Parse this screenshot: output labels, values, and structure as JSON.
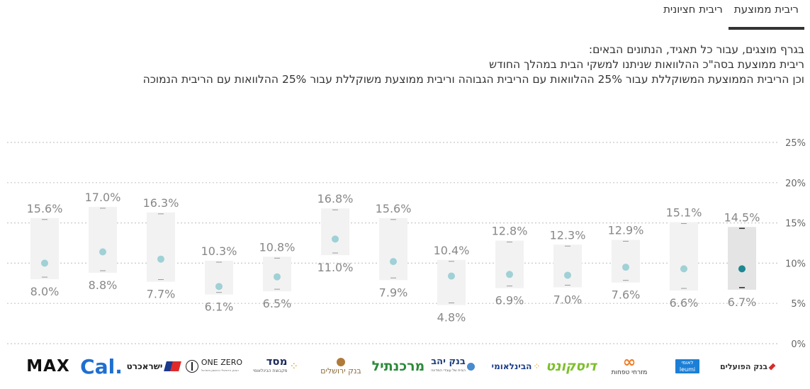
{
  "tabs": [
    {
      "label": "ריבית ממוצעת",
      "active": true
    },
    {
      "label": "ריבית חציונית",
      "active": false
    }
  ],
  "description": [
    "בגרף מוצגים, עבור כל תאגיד, הנתונים הבאים:",
    "ריבית ממוצעת בסה\"כ ההלוואות שניתנו למשקי הבית במהלך החודש",
    "וכן הריבית הממוצעת המשוקללת עבור 25% ההלוואות עם הריבית הגבוהה וריבית ממוצעת משוקללת עבור 25% ההלוואות עם הריבית הנמוכה"
  ],
  "chart_data": {
    "type": "range-dot",
    "y_ticks": [
      "25%",
      "20%",
      "15%",
      "10%",
      "5%",
      "0%"
    ],
    "ylim": [
      0,
      25
    ],
    "grid": true,
    "colors": {
      "box": "#f2f2f2",
      "box_selected": "#e4e4e4",
      "dot": "#9fd1d6",
      "dot_selected": "#1d8891",
      "label": "#888888"
    },
    "banks": [
      {
        "name": "MAX",
        "high": 15.6,
        "low": 8.0,
        "avg": 10.0,
        "high_label": "15.6%",
        "low_label": "8.0%"
      },
      {
        "name": "Cal.",
        "high": 17.0,
        "low": 8.8,
        "avg": 11.4,
        "high_label": "17.0%",
        "low_label": "8.8%"
      },
      {
        "name": "ישראכרט",
        "high": 16.3,
        "low": 7.7,
        "avg": 10.5,
        "high_label": "16.3%",
        "low_label": "7.7%"
      },
      {
        "name": "ONE ZERO",
        "high": 10.3,
        "low": 6.1,
        "avg": 7.1,
        "high_label": "10.3%",
        "low_label": "6.1%"
      },
      {
        "name": "מסד",
        "high": 10.8,
        "low": 6.5,
        "avg": 8.3,
        "high_label": "10.8%",
        "low_label": "6.5%"
      },
      {
        "name": "בנק ירושלים",
        "high": 16.8,
        "low": 11.0,
        "avg": 13.0,
        "high_label": "16.8%",
        "low_label": "11.0%"
      },
      {
        "name": "מרכנתיל",
        "high": 15.6,
        "low": 7.9,
        "avg": 10.2,
        "high_label": "15.6%",
        "low_label": "7.9%"
      },
      {
        "name": "בנק יהב",
        "high": 10.4,
        "low": 4.8,
        "avg": 8.4,
        "high_label": "10.4%",
        "low_label": "4.8%"
      },
      {
        "name": "הבינלאומי",
        "high": 12.8,
        "low": 6.9,
        "avg": 8.6,
        "high_label": "12.8%",
        "low_label": "6.9%"
      },
      {
        "name": "דיסקונט",
        "high": 12.3,
        "low": 7.0,
        "avg": 8.5,
        "high_label": "12.3%",
        "low_label": "7.0%"
      },
      {
        "name": "מזרחי טפחות",
        "high": 12.9,
        "low": 7.6,
        "avg": 9.5,
        "high_label": "12.9%",
        "low_label": "7.6%"
      },
      {
        "name": "לאומי",
        "high": 15.1,
        "low": 6.6,
        "avg": 9.3,
        "high_label": "15.1%",
        "low_label": "6.6%"
      },
      {
        "name": "בנק הפועלים",
        "high": 14.5,
        "low": 6.7,
        "avg": 9.3,
        "high_label": "14.5%",
        "low_label": "6.7%",
        "selected": true
      }
    ]
  },
  "logos": {
    "max": "MAX",
    "cal": "Cal.",
    "isracard": "ישראכרט",
    "onezero": "ONE ZERO",
    "onezero_sub": "הבנק הדיגיטלי הראשון בישראל",
    "masad": "מסד",
    "masad_sub": "מקבוצת הבינלאומי",
    "jerusalem": "בנק ירושלים",
    "mercantile": "מרכנתיל",
    "yahav": "בנק יהב",
    "yahav_sub": "הבית של עובדי המדינה",
    "fibi": "הבינלאומי",
    "discount": "דיסקונט",
    "mizrahi": "מזרחי טפחות",
    "leumi_en": "leumi",
    "leumi_he": "לאומי",
    "hapoalim": "בנק הפועלים"
  }
}
